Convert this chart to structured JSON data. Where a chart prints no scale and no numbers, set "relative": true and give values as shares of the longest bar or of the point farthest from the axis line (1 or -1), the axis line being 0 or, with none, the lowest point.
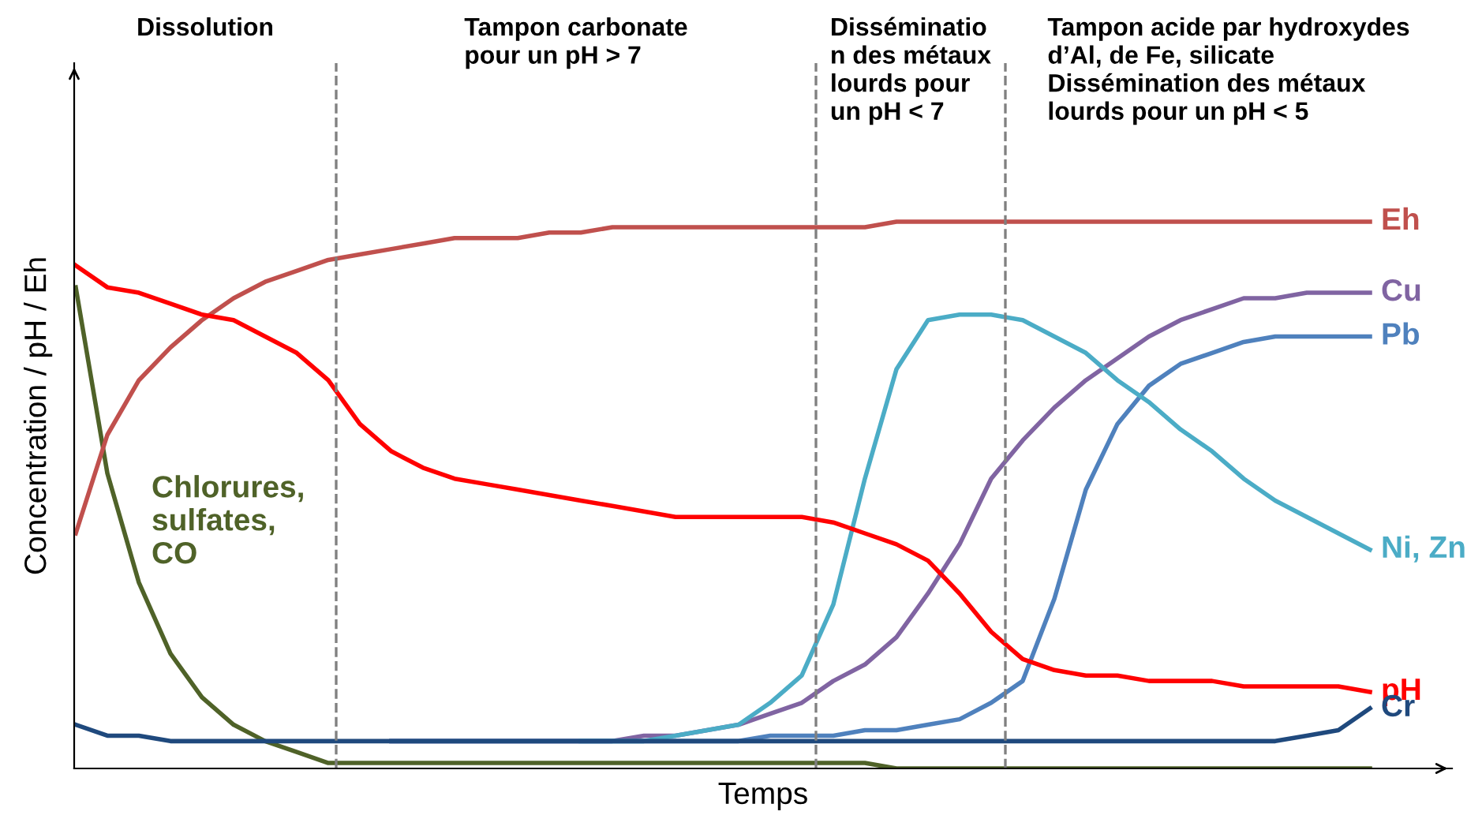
{
  "chart_data": {
    "type": "line",
    "relative": true,
    "xlabel": "Temps",
    "ylabel": "Concentration / pH / Eh",
    "legend": false,
    "marker": "none",
    "line_style": "solid",
    "categories": [
      null,
      null,
      null,
      null,
      null,
      null,
      null,
      null,
      null,
      null,
      null,
      null,
      null,
      null,
      null,
      null,
      null,
      null,
      null,
      null,
      null,
      null,
      null,
      null,
      null,
      null,
      null,
      null,
      null,
      null,
      null,
      null,
      null,
      null,
      null,
      null,
      null,
      null,
      null,
      null,
      null,
      null
    ],
    "series": [
      {
        "name": "Chlorures,\nsulfates,\nCO",
        "color": "#4f6228",
        "values": [
          0.88,
          0.54,
          0.34,
          0.21,
          0.13,
          0.08,
          0.05,
          0.03,
          0.01,
          0.01,
          0.01,
          0.01,
          0.01,
          0.01,
          0.01,
          0.01,
          0.01,
          0.01,
          0.01,
          0.01,
          0.01,
          0.01,
          0.01,
          0.01,
          0.01,
          0.01,
          0.0,
          0.0,
          0.0,
          0.0,
          0.0,
          0.0,
          0.0,
          0.0,
          0.0,
          0.0,
          0.0,
          0.0,
          0.0,
          0.0,
          0.0,
          0.0
        ]
      },
      {
        "name": "Eh",
        "color": "#c0504d",
        "values": [
          0.43,
          0.61,
          0.71,
          0.77,
          0.82,
          0.86,
          0.89,
          0.91,
          0.93,
          0.94,
          0.95,
          0.96,
          0.97,
          0.97,
          0.97,
          0.98,
          0.98,
          0.99,
          0.99,
          0.99,
          0.99,
          0.99,
          0.99,
          0.99,
          0.99,
          0.99,
          1.0,
          1.0,
          1.0,
          1.0,
          1.0,
          1.0,
          1.0,
          1.0,
          1.0,
          1.0,
          1.0,
          1.0,
          1.0,
          1.0,
          1.0,
          1.0
        ]
      },
      {
        "name": "Cu",
        "color": "#8064a2",
        "values": [
          null,
          null,
          null,
          null,
          null,
          null,
          null,
          null,
          null,
          null,
          0.05,
          0.05,
          0.05,
          0.05,
          0.05,
          0.05,
          0.05,
          0.05,
          0.06,
          0.06,
          0.07,
          0.08,
          0.1,
          0.12,
          0.16,
          0.19,
          0.24,
          0.32,
          0.41,
          0.53,
          0.6,
          0.66,
          0.71,
          0.75,
          0.79,
          0.82,
          0.84,
          0.86,
          0.86,
          0.87,
          0.87,
          0.87
        ]
      },
      {
        "name": "Pb",
        "color": "#4f81bd",
        "values": [
          null,
          null,
          null,
          null,
          null,
          null,
          null,
          null,
          null,
          null,
          0.05,
          0.05,
          0.05,
          0.05,
          0.05,
          0.05,
          0.05,
          0.05,
          0.05,
          0.05,
          0.05,
          0.05,
          0.06,
          0.06,
          0.06,
          0.07,
          0.07,
          0.08,
          0.09,
          0.12,
          0.16,
          0.31,
          0.51,
          0.63,
          0.7,
          0.74,
          0.76,
          0.78,
          0.79,
          0.79,
          0.79,
          0.79
        ]
      },
      {
        "name": "Ni, Zn",
        "color": "#4bacc6",
        "values": [
          null,
          null,
          null,
          null,
          null,
          null,
          null,
          null,
          null,
          null,
          null,
          null,
          null,
          null,
          null,
          null,
          0.05,
          0.05,
          0.05,
          0.06,
          0.07,
          0.08,
          0.12,
          0.17,
          0.3,
          0.53,
          0.73,
          0.82,
          0.83,
          0.83,
          0.82,
          0.79,
          0.76,
          0.71,
          0.67,
          0.62,
          0.58,
          0.53,
          0.49,
          0.46,
          0.43,
          0.4
        ]
      },
      {
        "name": "pH",
        "color": "#ff0000",
        "values": [
          0.92,
          0.88,
          0.87,
          0.85,
          0.83,
          0.82,
          0.79,
          0.76,
          0.71,
          0.63,
          0.58,
          0.55,
          0.53,
          0.52,
          0.51,
          0.5,
          0.49,
          0.48,
          0.47,
          0.46,
          0.46,
          0.46,
          0.46,
          0.46,
          0.45,
          0.43,
          0.41,
          0.38,
          0.32,
          0.25,
          0.2,
          0.18,
          0.17,
          0.17,
          0.16,
          0.16,
          0.16,
          0.15,
          0.15,
          0.15,
          0.15,
          0.14
        ]
      },
      {
        "name": "Cr",
        "color": "#1f497d",
        "values": [
          0.08,
          0.06,
          0.06,
          0.05,
          0.05,
          0.05,
          0.05,
          0.05,
          0.05,
          0.05,
          0.05,
          0.05,
          0.05,
          0.05,
          0.05,
          0.05,
          0.05,
          0.05,
          0.05,
          0.05,
          0.05,
          0.05,
          0.05,
          0.05,
          0.05,
          0.05,
          0.05,
          0.05,
          0.05,
          0.05,
          0.05,
          0.05,
          0.05,
          0.05,
          0.05,
          0.05,
          0.05,
          0.05,
          0.05,
          0.06,
          0.07,
          0.11
        ]
      }
    ],
    "annotations": [
      "Dissolution",
      "Tampon carbonate\npour un pH > 7",
      "Disséminatio\nn des métaux\nlourds pour\nun pH < 7",
      "Tampon acide par hydroxydes\nd’Al, de Fe, silicate\nDissémination des métaux\nlourds pour un pH < 5"
    ]
  }
}
